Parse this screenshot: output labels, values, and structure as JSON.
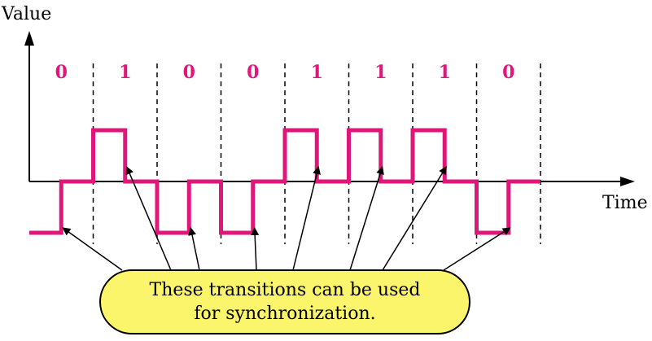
{
  "axes": {
    "y_label": "Value",
    "x_label": "Time"
  },
  "bits": [
    "0",
    "1",
    "0",
    "0",
    "1",
    "1",
    "1",
    "0"
  ],
  "callout": {
    "line1": "These transitions can be used",
    "line2": "for synchronization."
  },
  "colors": {
    "signal": "#e0177a",
    "bit_text": "#e0177a",
    "callout_fill": "#fbf56b",
    "axis": "#000000"
  }
}
